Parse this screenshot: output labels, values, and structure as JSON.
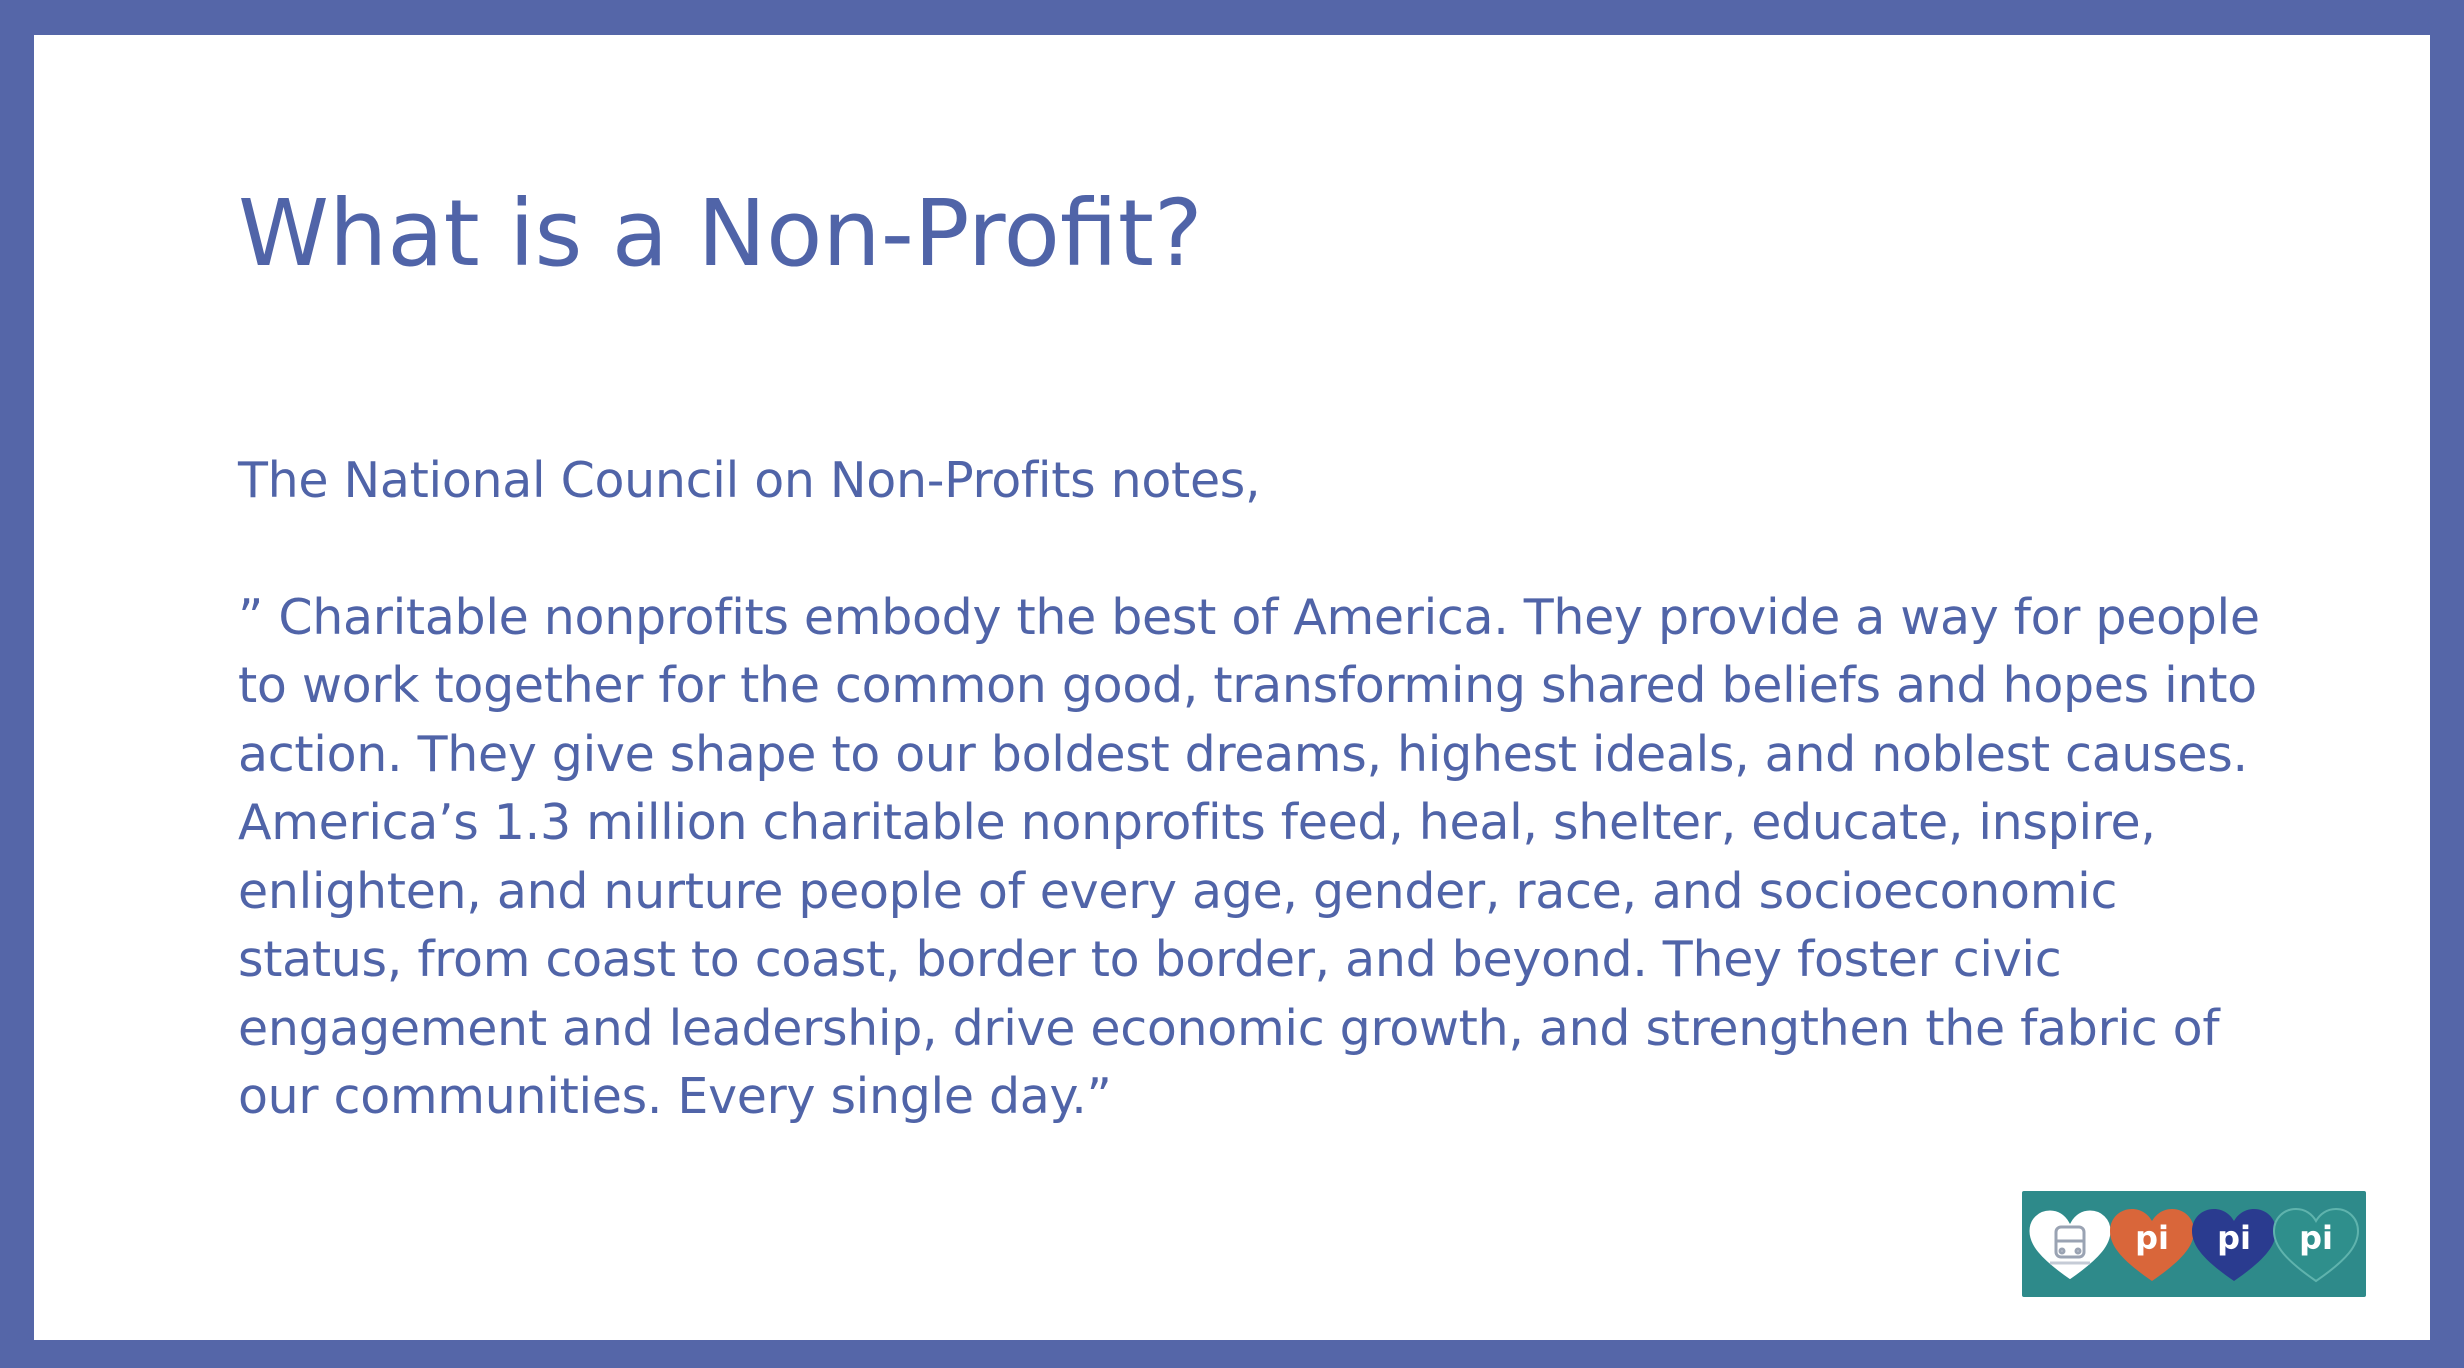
{
  "slide": {
    "title": "What is a Non-Profit?",
    "intro": "The National Council on Non-Profits notes,",
    "quote": "” Charitable nonprofits embody the best of America. They provide a way for people to work together for the common good, transforming shared beliefs and hopes into action. They give shape to our boldest dreams, highest ideals, and noblest causes. America’s 1.3 million charitable nonprofits feed, heal, shelter, educate, inspire, enlighten, and nurture people of every age, gender, race, and socioeconomic status, from coast to coast, border to border, and beyond. They foster civic engagement and leadership, drive economic growth, and strengthen the fabric of our communities. Every single day.”"
  },
  "logo": {
    "hearts": [
      {
        "icon": "bus-icon",
        "color": "#ffffff",
        "label": ""
      },
      {
        "icon": "heart-icon",
        "color": "#d9663a",
        "label": "pi"
      },
      {
        "icon": "heart-icon",
        "color": "#2a3b8f",
        "label": "pi"
      },
      {
        "icon": "heart-icon",
        "color": "#2f8f8c",
        "label": "pi"
      }
    ]
  },
  "colors": {
    "frame": "#5566a8",
    "text": "#5064a8",
    "logo_bg": "#2e8a8a"
  }
}
